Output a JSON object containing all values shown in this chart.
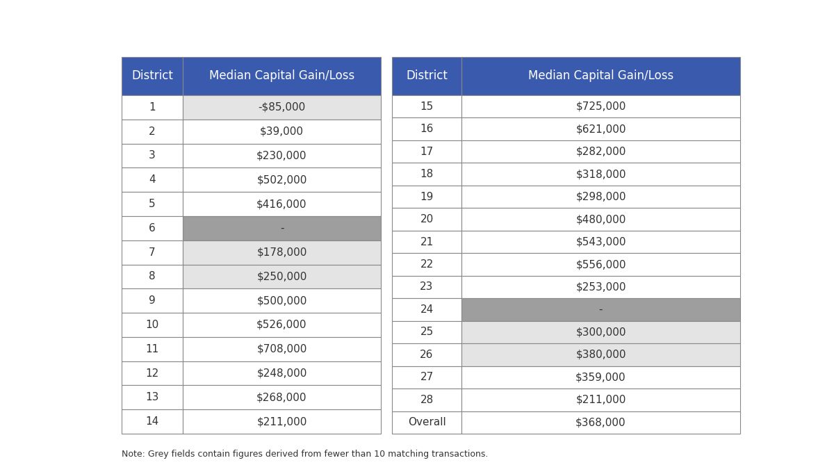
{
  "left_table": {
    "districts": [
      "1",
      "2",
      "3",
      "4",
      "5",
      "6",
      "7",
      "8",
      "9",
      "10",
      "11",
      "12",
      "13",
      "14"
    ],
    "values": [
      "-$85,000",
      "$39,000",
      "$230,000",
      "$502,000",
      "$416,000",
      "-",
      "$178,000",
      "$250,000",
      "$500,000",
      "$526,000",
      "$708,000",
      "$248,000",
      "$268,000",
      "$211,000"
    ],
    "grey_rows": [
      5
    ],
    "light_grey_rows": [
      0,
      6,
      7
    ]
  },
  "right_table": {
    "districts": [
      "15",
      "16",
      "17",
      "18",
      "19",
      "20",
      "21",
      "22",
      "23",
      "24",
      "25",
      "26",
      "27",
      "28",
      "Overall"
    ],
    "values": [
      "$725,000",
      "$621,000",
      "$282,000",
      "$318,000",
      "$298,000",
      "$480,000",
      "$543,000",
      "$556,000",
      "$253,000",
      "-",
      "$300,000",
      "$380,000",
      "$359,000",
      "$211,000",
      "$368,000"
    ],
    "grey_rows": [
      9
    ],
    "light_grey_rows": [
      10,
      11
    ]
  },
  "header_bg": "#3a5aad",
  "header_text": "#ffffff",
  "cell_bg_white": "#ffffff",
  "cell_bg_light_grey": "#e4e4e4",
  "cell_bg_grey": "#9e9e9e",
  "border_color": "#888888",
  "text_color": "#333333",
  "note_text": "Note: Grey fields contain figures derived from fewer than 10 matching transactions.",
  "col_header_1": "District",
  "col_header_2": "Median Capital Gain/Loss",
  "background_color": "#ffffff",
  "fig_width": 12.0,
  "fig_height": 6.82,
  "dpi": 100
}
